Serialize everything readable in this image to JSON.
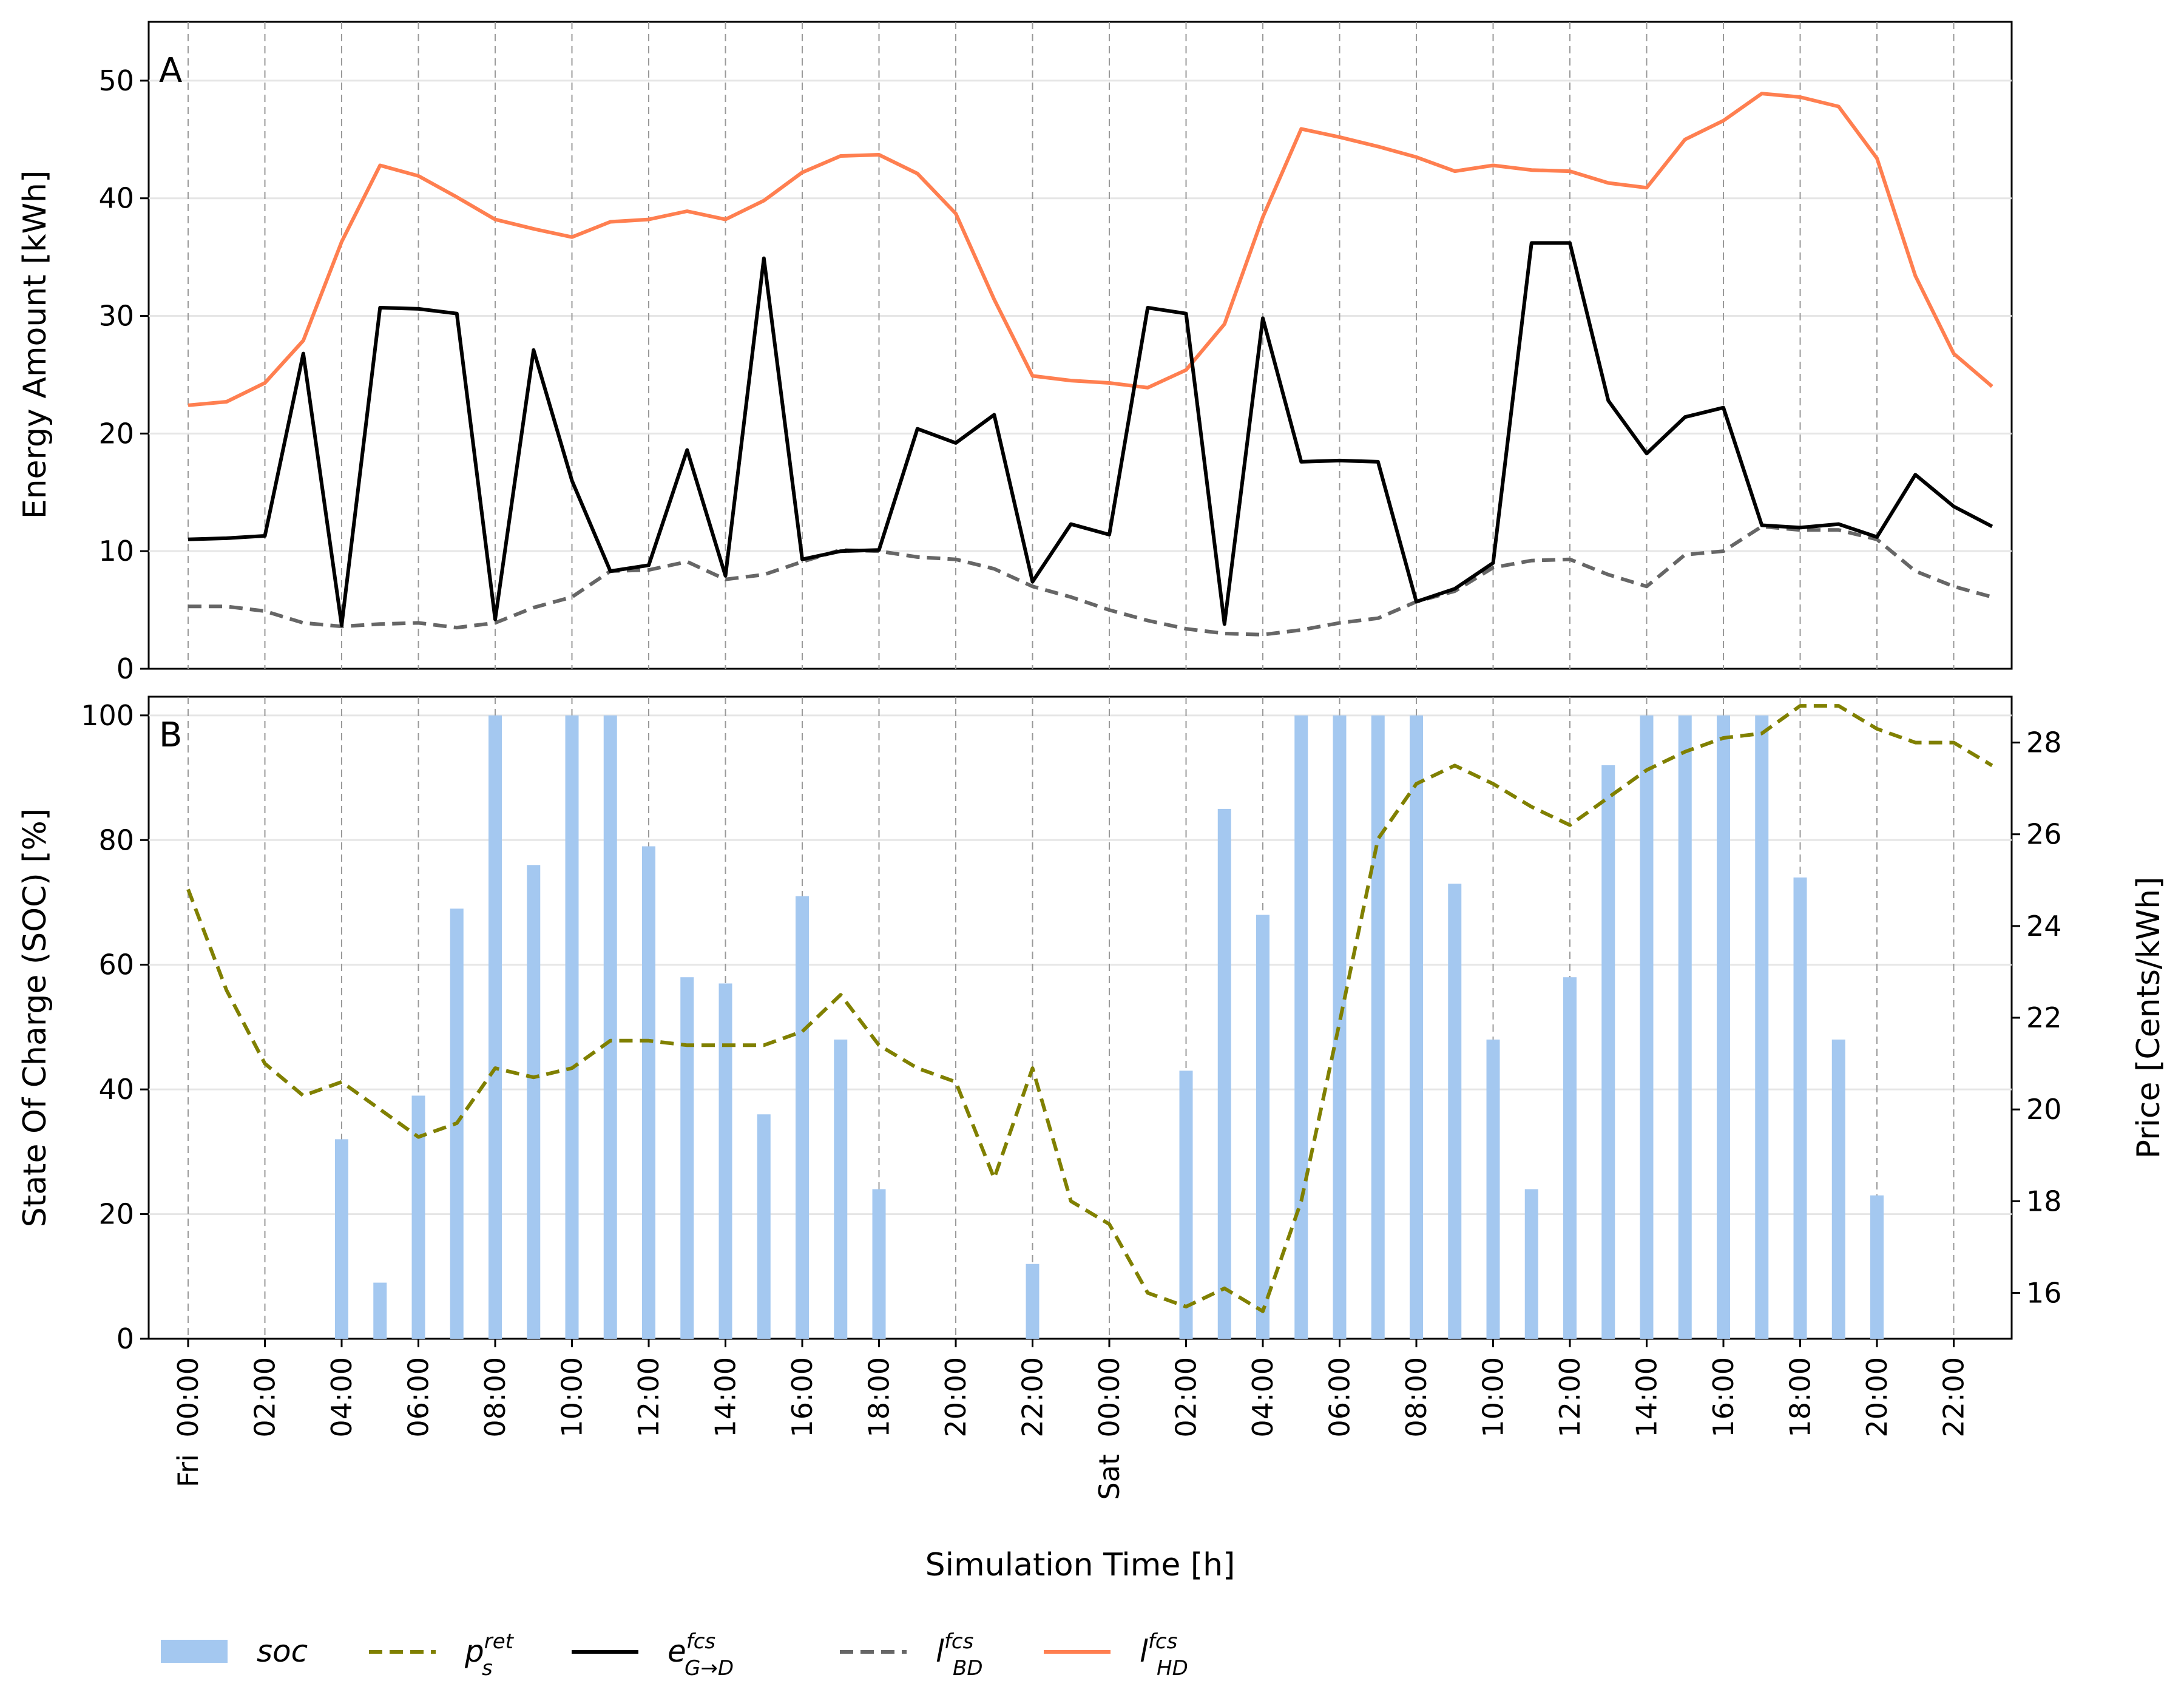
{
  "chart_data": [
    {
      "panel": "A",
      "type": "line",
      "ylabel": "Energy Amount [kWh]",
      "ylim": [
        0,
        55
      ],
      "yticks": [
        0,
        10,
        20,
        30,
        40,
        50
      ],
      "x_hours": [
        0,
        1,
        2,
        3,
        4,
        5,
        6,
        7,
        8,
        9,
        10,
        11,
        12,
        13,
        14,
        15,
        16,
        17,
        18,
        19,
        20,
        21,
        22,
        23,
        24,
        25,
        26,
        27,
        28,
        29,
        30,
        31,
        32,
        33,
        34,
        35,
        36,
        37,
        38,
        39,
        40,
        41,
        42,
        43,
        44,
        45,
        46,
        47
      ],
      "series": [
        {
          "name": "e_G→D^fcs",
          "key": "e",
          "color": "#000000",
          "dash": "solid",
          "values": [
            11.0,
            11.1,
            11.3,
            26.8,
            3.7,
            30.7,
            30.6,
            30.2,
            4.2,
            27.1,
            16.0,
            8.3,
            8.8,
            18.6,
            7.9,
            34.9,
            9.3,
            10.0,
            10.1,
            20.4,
            19.2,
            21.6,
            7.4,
            12.3,
            11.4,
            30.7,
            30.2,
            3.8,
            29.8,
            17.6,
            17.7,
            17.6,
            5.7,
            6.8,
            9.0,
            36.2,
            36.2,
            22.8,
            18.3,
            21.4,
            22.2,
            12.2,
            12.0,
            12.3,
            11.2,
            16.5,
            13.8,
            12.1
          ]
        },
        {
          "name": "l_BD^fcs",
          "key": "lbd",
          "color": "#666666",
          "dash": "dashed",
          "values": [
            5.3,
            5.3,
            4.9,
            3.9,
            3.6,
            3.8,
            3.9,
            3.5,
            3.9,
            5.2,
            6.1,
            8.3,
            8.4,
            9.1,
            7.6,
            8.0,
            9.1,
            10.1,
            10.0,
            9.5,
            9.3,
            8.5,
            7.0,
            6.1,
            5.0,
            4.1,
            3.4,
            3.0,
            2.9,
            3.3,
            3.9,
            4.3,
            5.7,
            6.6,
            8.6,
            9.2,
            9.3,
            8.0,
            7.0,
            9.7,
            10.0,
            12.1,
            11.8,
            11.8,
            11.0,
            8.3,
            7.0,
            6.1
          ]
        },
        {
          "name": "l_HD^fcs",
          "key": "lhd",
          "color": "#FF7F50",
          "dash": "solid",
          "values": [
            22.4,
            22.7,
            24.3,
            27.9,
            36.3,
            42.8,
            41.9,
            40.1,
            38.2,
            37.4,
            36.7,
            38.0,
            38.2,
            38.9,
            38.2,
            39.8,
            42.2,
            43.6,
            43.7,
            42.1,
            38.7,
            31.4,
            24.9,
            24.5,
            24.3,
            23.9,
            25.4,
            29.3,
            38.4,
            45.9,
            45.2,
            44.4,
            43.5,
            42.3,
            42.8,
            42.4,
            42.3,
            41.3,
            40.9,
            45.0,
            46.6,
            48.9,
            48.6,
            47.8,
            43.4,
            33.4,
            26.8,
            24.0
          ]
        }
      ]
    },
    {
      "panel": "B",
      "type": "bar+line",
      "ylabel": "State Of Charge (SOC) [%]",
      "ylabel_right": "Price [Cents/kWh]",
      "ylim": [
        0,
        103
      ],
      "yticks": [
        0,
        20,
        40,
        60,
        80,
        100
      ],
      "ylim_right": [
        15,
        29
      ],
      "yticks_right": [
        16,
        18,
        20,
        22,
        24,
        26,
        28
      ],
      "x_hours": [
        0,
        1,
        2,
        3,
        4,
        5,
        6,
        7,
        8,
        9,
        10,
        11,
        12,
        13,
        14,
        15,
        16,
        17,
        18,
        19,
        20,
        21,
        22,
        23,
        24,
        25,
        26,
        27,
        28,
        29,
        30,
        31,
        32,
        33,
        34,
        35,
        36,
        37,
        38,
        39,
        40,
        41,
        42,
        43,
        44,
        45,
        46,
        47
      ],
      "series": [
        {
          "name": "soc",
          "key": "soc",
          "type": "bar",
          "color": "#A4C8F0",
          "values": [
            0,
            0,
            0,
            0,
            32,
            9,
            39,
            69,
            100,
            76,
            100,
            100,
            79,
            58,
            57,
            36,
            71,
            48,
            24,
            0,
            0,
            0,
            12,
            0,
            0,
            0,
            43,
            85,
            68,
            100,
            100,
            100,
            100,
            73,
            48,
            24,
            58,
            92,
            100,
            100,
            100,
            100,
            74,
            48,
            23,
            0,
            0,
            0
          ]
        },
        {
          "name": "p_s^ret",
          "key": "price",
          "type": "line",
          "color": "#808000",
          "dash": "dashed",
          "axis": "right",
          "values": [
            24.8,
            22.6,
            21.0,
            20.3,
            20.6,
            20.0,
            19.4,
            19.7,
            20.9,
            20.7,
            20.9,
            21.5,
            21.5,
            21.4,
            21.4,
            21.4,
            21.7,
            22.5,
            21.4,
            20.9,
            20.6,
            18.5,
            20.9,
            18.0,
            17.5,
            16.0,
            15.7,
            16.1,
            15.6,
            18.0,
            21.9,
            25.9,
            27.1,
            27.5,
            27.1,
            26.6,
            26.2,
            26.8,
            27.4,
            27.8,
            28.1,
            28.2,
            28.8,
            28.8,
            28.3,
            28.0,
            28.0,
            27.5
          ]
        }
      ]
    }
  ],
  "xaxis": {
    "xlabel": "Simulation Time [h]",
    "tick_hours": [
      0,
      2,
      4,
      6,
      8,
      10,
      12,
      14,
      16,
      18,
      20,
      22,
      24,
      26,
      28,
      30,
      32,
      34,
      36,
      38,
      40,
      42,
      44,
      46
    ],
    "tick_labels": [
      "Fri 00:00",
      "02:00",
      "04:00",
      "06:00",
      "08:00",
      "10:00",
      "12:00",
      "14:00",
      "16:00",
      "18:00",
      "20:00",
      "22:00",
      "Sat 00:00",
      "02:00",
      "04:00",
      "06:00",
      "08:00",
      "10:00",
      "12:00",
      "14:00",
      "16:00",
      "18:00",
      "20:00",
      "22:00"
    ]
  },
  "legend": [
    {
      "key": "soc",
      "main": "soc",
      "sup": "",
      "sub": ""
    },
    {
      "key": "price",
      "main": "p",
      "sup": "ret",
      "sub": "s"
    },
    {
      "key": "e",
      "main": "e",
      "sup": "fcs",
      "sub": "G→D"
    },
    {
      "key": "lbd",
      "main": "l",
      "sup": "fcs",
      "sub": "BD"
    },
    {
      "key": "lhd",
      "main": "l",
      "sup": "fcs",
      "sub": "HD"
    }
  ]
}
